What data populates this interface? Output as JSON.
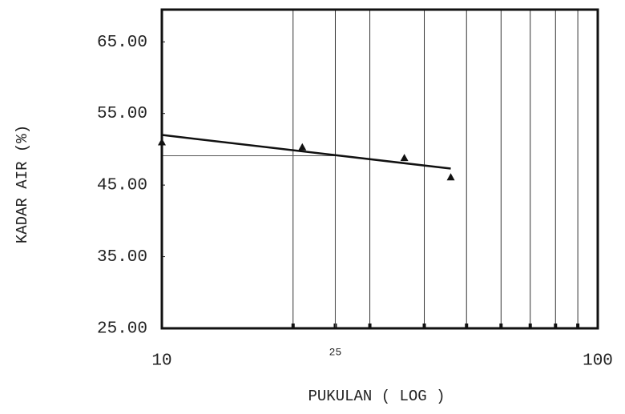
{
  "chart_data": {
    "type": "scatter",
    "y_label": "KADAR AIR (%)",
    "x_label": "PUKULAN ( LOG )",
    "log_x": true,
    "xlim": [
      10,
      100
    ],
    "ylim": [
      25,
      69.5
    ],
    "xticks": [
      10,
      25,
      100
    ],
    "grid_x": [
      20,
      25,
      30,
      40,
      50,
      60,
      70,
      80,
      90
    ],
    "yticks": [
      {
        "value": 25,
        "label": "25.00"
      },
      {
        "value": 35,
        "label": "35.00"
      },
      {
        "value": 45,
        "label": "45.00"
      },
      {
        "value": 55,
        "label": "55.00"
      },
      {
        "value": 65,
        "label": "65.00"
      }
    ],
    "series": [
      {
        "x": [
          10,
          21,
          36,
          46
        ],
        "values": [
          51,
          50.3,
          48.8,
          46.1
        ],
        "color": "#111"
      }
    ],
    "fit_line": {
      "x": [
        10,
        46
      ],
      "values": [
        52,
        47.3
      ]
    },
    "guide": {
      "x": 25,
      "value": 49.1
    }
  }
}
